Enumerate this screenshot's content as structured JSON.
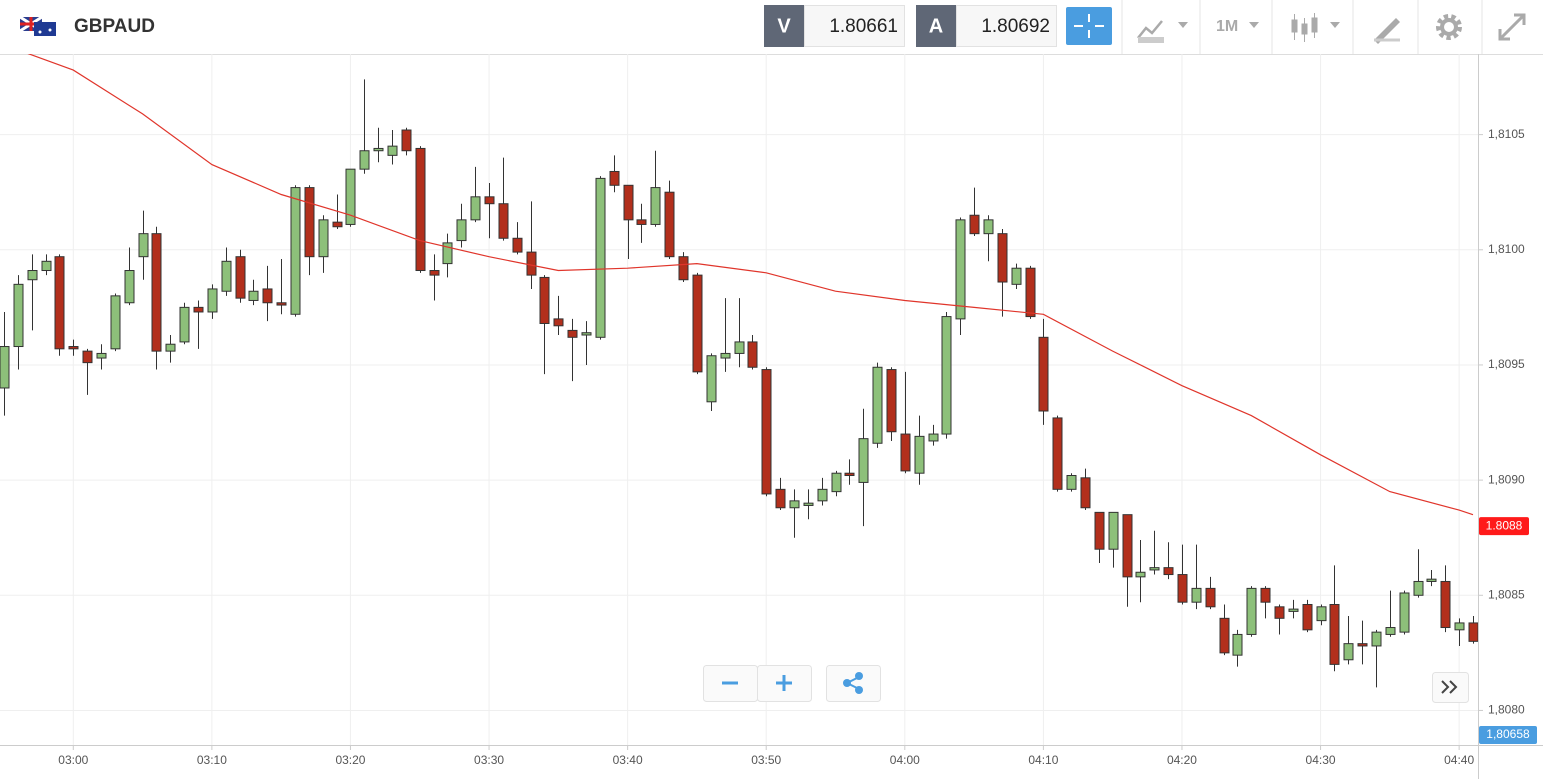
{
  "chart_data": {
    "type": "candlestick",
    "title": "GBPAUD",
    "bid_label": "V",
    "bid": 1.80661,
    "ask_label": "A",
    "ask": 1.80692,
    "timeframe": "1M",
    "up_color": "#8dc07a",
    "down_color": "#b22f1c",
    "x": [
      "02:55",
      "02:56",
      "02:57",
      "02:58",
      "02:59",
      "03:00",
      "03:01",
      "03:02",
      "03:03",
      "03:04",
      "03:05",
      "03:06",
      "03:07",
      "03:08",
      "03:09",
      "03:10",
      "03:11",
      "03:12",
      "03:13",
      "03:14",
      "03:15",
      "03:16",
      "03:17",
      "03:18",
      "03:19",
      "03:20",
      "03:21",
      "03:22",
      "03:23",
      "03:24",
      "03:25",
      "03:26",
      "03:27",
      "03:28",
      "03:29",
      "03:30",
      "03:31",
      "03:32",
      "03:33",
      "03:34",
      "03:35",
      "03:36",
      "03:37",
      "03:38",
      "03:39",
      "03:40",
      "03:41",
      "03:42",
      "03:43",
      "03:44",
      "03:45",
      "03:46",
      "03:47",
      "03:48",
      "03:49",
      "03:50",
      "03:51",
      "03:52",
      "03:53",
      "03:54",
      "03:55",
      "03:56",
      "03:57",
      "03:58",
      "03:59",
      "04:00",
      "04:01",
      "04:02",
      "04:03",
      "04:04",
      "04:05",
      "04:06",
      "04:07",
      "04:08",
      "04:09",
      "04:10",
      "04:11",
      "04:12",
      "04:13",
      "04:14",
      "04:15",
      "04:16",
      "04:17",
      "04:18",
      "04:19",
      "04:20",
      "04:21",
      "04:22",
      "04:23",
      "04:24",
      "04:25",
      "04:26",
      "04:27",
      "04:28",
      "04:29",
      "04:30",
      "04:31",
      "04:32",
      "04:33",
      "04:34",
      "04:35",
      "04:36",
      "04:37",
      "04:38",
      "04:39",
      "04:40",
      "04:41"
    ],
    "open": [
      1.8094,
      1.80958,
      1.80987,
      1.80991,
      1.80997,
      1.80958,
      1.80956,
      1.80953,
      1.80957,
      1.80977,
      1.80997,
      1.81007,
      1.80956,
      1.8096,
      1.80975,
      1.80973,
      1.80982,
      1.80997,
      1.80978,
      1.80983,
      1.80977,
      1.80972,
      1.81027,
      1.80997,
      1.81012,
      1.81011,
      1.81035,
      1.81043,
      1.81041,
      1.81052,
      1.81044,
      1.80991,
      1.80994,
      1.81004,
      1.81013,
      1.81023,
      1.8102,
      1.81005,
      1.80999,
      1.80988,
      1.8097,
      1.80965,
      1.80963,
      1.80962,
      1.81034,
      1.81028,
      1.81013,
      1.81011,
      1.81025,
      1.80997,
      1.80989,
      1.80934,
      1.80953,
      1.80955,
      1.8096,
      1.80948,
      1.80896,
      1.80888,
      1.80889,
      1.80891,
      1.80895,
      1.80903,
      1.80899,
      1.80916,
      1.80948,
      1.8092,
      1.80903,
      1.80917,
      1.8092,
      1.8097,
      1.81015,
      1.81007,
      1.81007,
      1.80985,
      1.80992,
      1.80962,
      1.80927,
      1.80896,
      1.80901,
      1.80886,
      1.8087,
      1.80885,
      1.80858,
      1.80861,
      1.80862,
      1.80859,
      1.80847,
      1.80853,
      1.8084,
      1.80824,
      1.80833,
      1.80853,
      1.80845,
      1.80843,
      1.80846,
      1.80839,
      1.80846,
      1.80822,
      1.80829,
      1.80828,
      1.80833,
      1.80834,
      1.8085,
      1.80856,
      1.80856,
      1.80835,
      1.80838
    ],
    "high": [
      1.80973,
      1.80989,
      1.80998,
      1.80998,
      1.80998,
      1.80961,
      1.80957,
      1.80959,
      1.80981,
      1.81001,
      1.81017,
      1.8101,
      1.80963,
      1.80977,
      1.80978,
      1.80985,
      1.81001,
      1.81,
      1.80987,
      1.80993,
      1.80996,
      1.81028,
      1.81028,
      1.81015,
      1.81024,
      1.81035,
      1.81074,
      1.81053,
      1.81052,
      1.81053,
      1.81045,
      1.80998,
      1.81007,
      1.8102,
      1.81036,
      1.81029,
      1.8104,
      1.81012,
      1.81021,
      1.80989,
      1.8098,
      1.8097,
      1.80969,
      1.81032,
      1.81041,
      1.81028,
      1.8102,
      1.81043,
      1.8103,
      1.80999,
      1.8099,
      1.80955,
      1.80979,
      1.80979,
      1.80963,
      1.80949,
      1.80901,
      1.80896,
      1.80896,
      1.80901,
      1.80904,
      1.80909,
      1.80931,
      1.80951,
      1.80949,
      1.80947,
      1.80928,
      1.80924,
      1.80973,
      1.81014,
      1.81027,
      1.81015,
      1.81009,
      1.80994,
      1.80993,
      1.8097,
      1.80928,
      1.80903,
      1.80905,
      1.80886,
      1.80886,
      1.80885,
      1.80874,
      1.80878,
      1.80873,
      1.80872,
      1.80872,
      1.80858,
      1.80846,
      1.80835,
      1.80854,
      1.80854,
      1.80846,
      1.80848,
      1.80848,
      1.80846,
      1.80863,
      1.80841,
      1.80839,
      1.80835,
      1.80852,
      1.80852,
      1.8087,
      1.80861,
      1.80863,
      1.8084,
      1.80841
    ],
    "low": [
      1.80928,
      1.80948,
      1.80965,
      1.80989,
      1.80954,
      1.80954,
      1.80937,
      1.80948,
      1.80956,
      1.80976,
      1.80987,
      1.80948,
      1.80951,
      1.80959,
      1.80957,
      1.8097,
      1.8098,
      1.80977,
      1.80976,
      1.80969,
      1.80972,
      1.80971,
      1.80989,
      1.8099,
      1.81009,
      1.8101,
      1.81033,
      1.81038,
      1.81037,
      1.81041,
      1.8099,
      1.80978,
      1.80988,
      1.81001,
      1.81012,
      1.81005,
      1.81004,
      1.80998,
      1.80983,
      1.80946,
      1.80963,
      1.80943,
      1.8095,
      1.80961,
      1.81025,
      1.80996,
      1.81003,
      1.8101,
      1.80996,
      1.80986,
      1.80946,
      1.8093,
      1.80947,
      1.80949,
      1.80948,
      1.80893,
      1.80887,
      1.80875,
      1.80883,
      1.80889,
      1.80893,
      1.80898,
      1.8088,
      1.80914,
      1.80917,
      1.80903,
      1.80898,
      1.80915,
      1.80918,
      1.80963,
      1.81006,
      1.80995,
      1.80971,
      1.80983,
      1.8097,
      1.80924,
      1.80895,
      1.80895,
      1.80887,
      1.80864,
      1.80862,
      1.80845,
      1.80847,
      1.80859,
      1.80857,
      1.80846,
      1.80844,
      1.80844,
      1.80824,
      1.80819,
      1.80832,
      1.8084,
      1.80833,
      1.8084,
      1.80834,
      1.80837,
      1.80817,
      1.8082,
      1.8082,
      1.8081,
      1.80832,
      1.80833,
      1.80849,
      1.80854,
      1.80834,
      1.80828,
      1.80829
    ],
    "close": [
      1.80958,
      1.80985,
      1.80991,
      1.80995,
      1.80957,
      1.80957,
      1.80951,
      1.80955,
      1.8098,
      1.80991,
      1.81007,
      1.80956,
      1.80959,
      1.80975,
      1.80973,
      1.80983,
      1.80995,
      1.80979,
      1.80982,
      1.80977,
      1.80976,
      1.81027,
      1.80997,
      1.81013,
      1.8101,
      1.81035,
      1.81043,
      1.81044,
      1.81045,
      1.81043,
      1.80991,
      1.80989,
      1.81003,
      1.81013,
      1.81023,
      1.8102,
      1.81005,
      1.80999,
      1.80989,
      1.80968,
      1.80967,
      1.80962,
      1.80964,
      1.81031,
      1.81028,
      1.81013,
      1.81011,
      1.81027,
      1.80997,
      1.80987,
      1.80947,
      1.80954,
      1.80955,
      1.8096,
      1.80949,
      1.80894,
      1.80888,
      1.80891,
      1.8089,
      1.80896,
      1.80903,
      1.80902,
      1.80918,
      1.80949,
      1.80921,
      1.80904,
      1.80919,
      1.8092,
      1.80971,
      1.81013,
      1.81007,
      1.81013,
      1.80986,
      1.80992,
      1.80971,
      1.8093,
      1.80896,
      1.80902,
      1.80888,
      1.8087,
      1.80886,
      1.80858,
      1.8086,
      1.80862,
      1.80859,
      1.80847,
      1.80853,
      1.80845,
      1.80825,
      1.80833,
      1.80853,
      1.80847,
      1.8084,
      1.80844,
      1.80835,
      1.80845,
      1.8082,
      1.80829,
      1.80828,
      1.80834,
      1.80836,
      1.80851,
      1.80856,
      1.80857,
      1.80836,
      1.80838,
      1.8083
    ],
    "ma": {
      "color": "#e0352b",
      "x": [
        "02:55",
        "03:00",
        "03:05",
        "03:10",
        "03:15",
        "03:20",
        "03:25",
        "03:30",
        "03:35",
        "03:40",
        "03:45",
        "03:50",
        "03:55",
        "04:00",
        "04:05",
        "04:10",
        "04:15",
        "04:20",
        "04:25",
        "04:30",
        "04:35",
        "04:40",
        "04:41"
      ],
      "values": [
        1.81089,
        1.81078,
        1.81059,
        1.81037,
        1.81024,
        1.81015,
        1.81004,
        1.80997,
        1.80991,
        1.80992,
        1.80994,
        1.8099,
        1.80982,
        1.80978,
        1.80975,
        1.80972,
        1.80956,
        1.80941,
        1.80928,
        1.80911,
        1.80895,
        1.80887,
        1.80885
      ],
      "tag": 1.8088
    },
    "last_price": {
      "value": 1.80658,
      "label": "1,80658"
    },
    "xlim": [
      "02:55",
      "04:41"
    ],
    "xticks": [
      "03:00",
      "03:10",
      "03:20",
      "03:30",
      "03:40",
      "03:50",
      "04:00",
      "04:10",
      "04:20",
      "04:30",
      "04:40"
    ],
    "ylim": [
      1.80785,
      1.81085
    ],
    "yticks": [
      {
        "value": 1.808,
        "label": "1,8080"
      },
      {
        "value": 1.8085,
        "label": "1,8085"
      },
      {
        "value": 1.809,
        "label": "1,8090"
      },
      {
        "value": 1.8095,
        "label": "1,8095"
      },
      {
        "value": 1.81,
        "label": "1,8100"
      },
      {
        "value": 1.8105,
        "label": "1,8105"
      }
    ],
    "grid": true
  }
}
